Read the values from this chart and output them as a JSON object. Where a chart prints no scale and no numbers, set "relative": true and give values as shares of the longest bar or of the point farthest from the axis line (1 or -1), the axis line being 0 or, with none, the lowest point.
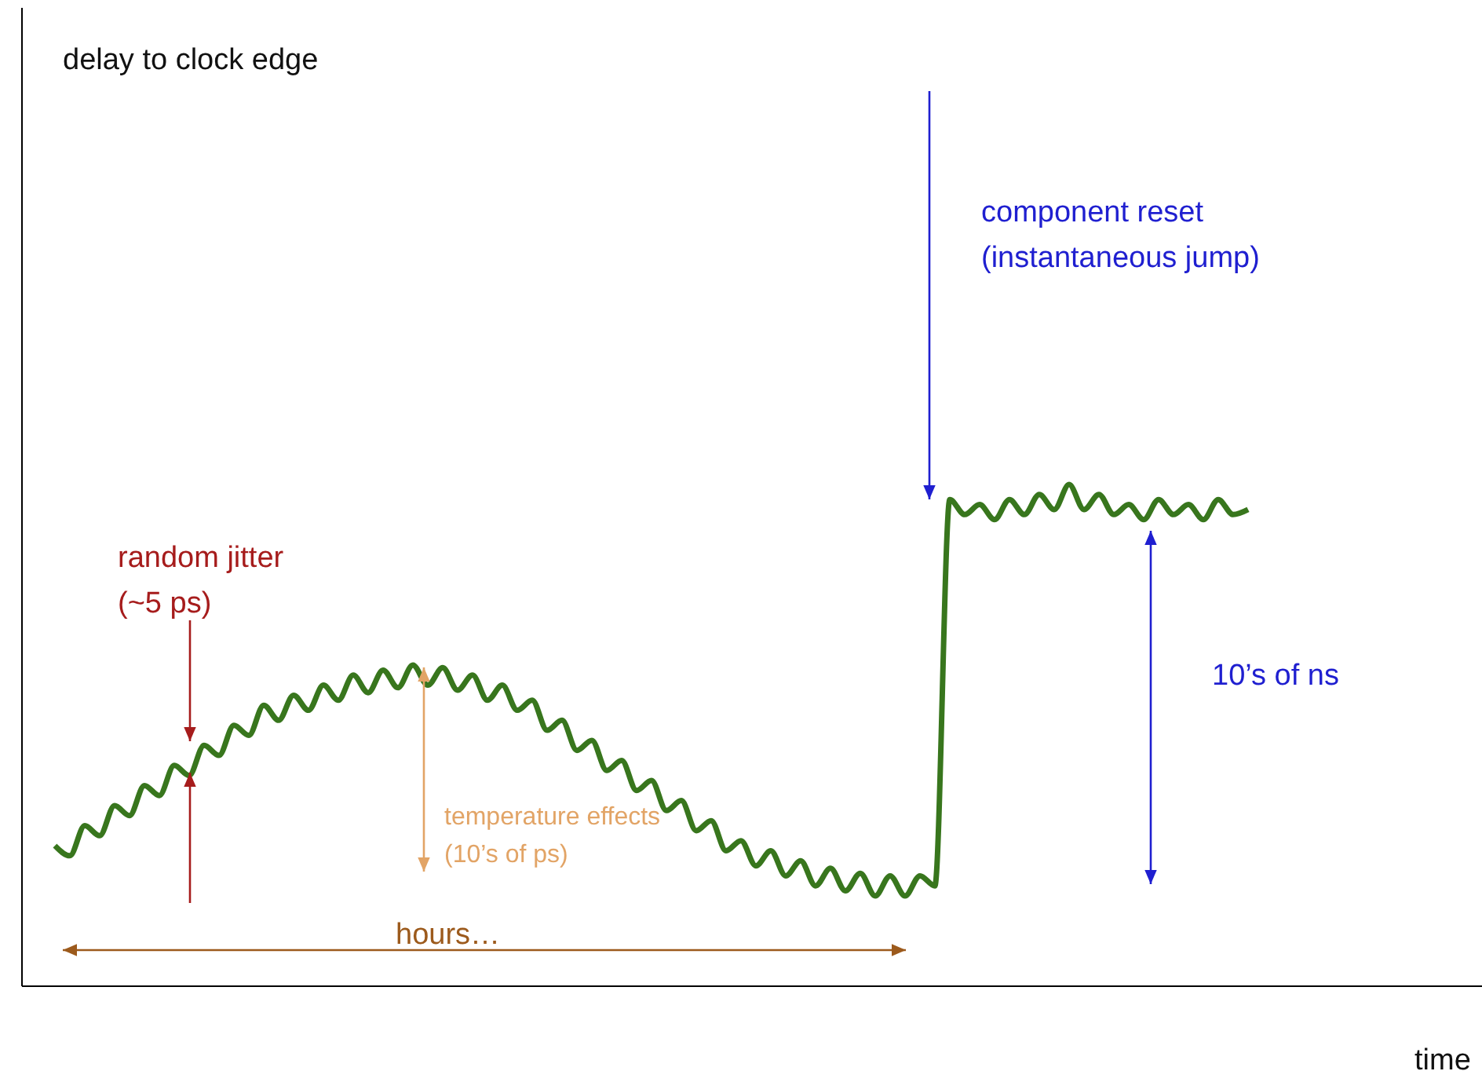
{
  "chart_data": {
    "type": "line",
    "relative": true,
    "categories": [
      null,
      null,
      null,
      null,
      null,
      null,
      null,
      null,
      null,
      null,
      null,
      null,
      null,
      null,
      null,
      null,
      null,
      null,
      null,
      null,
      null,
      null,
      null,
      null,
      null,
      null,
      null,
      null,
      null,
      null,
      null,
      null,
      null,
      null,
      null,
      null,
      null,
      null,
      null,
      null,
      null,
      null,
      null,
      null,
      null,
      null,
      null,
      null,
      null,
      null,
      null,
      null,
      null,
      null,
      null,
      null,
      null,
      null,
      null,
      null,
      null,
      null,
      null,
      null,
      null,
      null,
      null,
      null,
      null,
      null,
      null,
      null,
      null,
      null,
      null,
      null,
      null,
      null,
      null,
      null,
      null
    ],
    "series": [
      {
        "color": "#38761d",
        "values": [
          0.28,
          0.26,
          0.32,
          0.3,
          0.36,
          0.34,
          0.4,
          0.38,
          0.44,
          0.42,
          0.48,
          0.46,
          0.52,
          0.5,
          0.56,
          0.53,
          0.58,
          0.55,
          0.6,
          0.57,
          0.62,
          0.585,
          0.63,
          0.595,
          0.64,
          0.6,
          0.635,
          0.59,
          0.62,
          0.57,
          0.6,
          0.55,
          0.57,
          0.51,
          0.53,
          0.47,
          0.49,
          0.43,
          0.45,
          0.39,
          0.41,
          0.35,
          0.37,
          0.31,
          0.33,
          0.27,
          0.29,
          0.24,
          0.27,
          0.22,
          0.25,
          0.2,
          0.235,
          0.19,
          0.225,
          0.18,
          0.22,
          0.18,
          0.22,
          0.2,
          0.97,
          0.94,
          0.96,
          0.93,
          0.97,
          0.94,
          0.98,
          0.95,
          1,
          0.95,
          0.98,
          0.94,
          0.96,
          0.93,
          0.97,
          0.94,
          0.96,
          0.93,
          0.97,
          0.94,
          0.95
        ]
      }
    ],
    "annotations": [
      "component reset\n(instantaneous jump)",
      "10’s of ns",
      "random jitter\n(~5 ps)",
      "temperature effects\n(10’s of ps)",
      "hours…",
      "delay to clock edge",
      "time"
    ]
  }
}
